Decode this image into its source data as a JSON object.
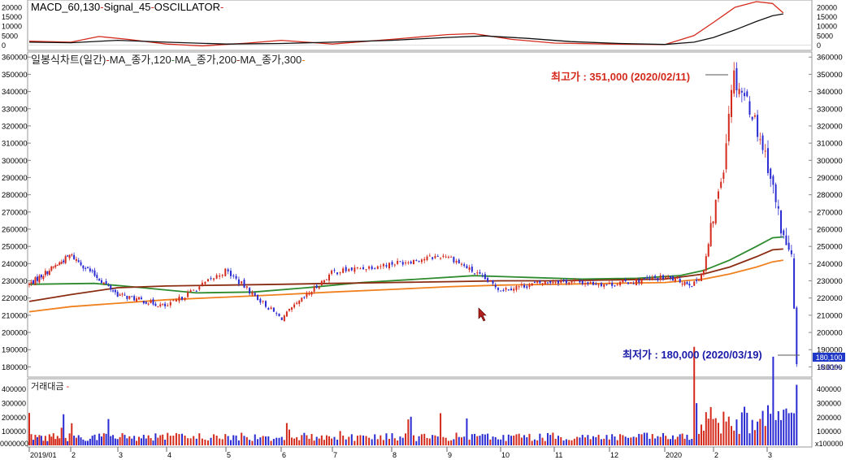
{
  "panels": {
    "macd": {
      "title_parts": [
        "MACD_60,130",
        "Signal_45",
        "OSCILLATOR"
      ],
      "ticks": [
        {
          "v": 20000,
          "label": "20000"
        },
        {
          "v": 15000,
          "label": "15000"
        },
        {
          "v": 10000,
          "label": "10000"
        },
        {
          "v": 5000,
          "label": "5000"
        },
        {
          "v": 0,
          "label": "0"
        }
      ]
    },
    "price": {
      "title_parts": [
        "일봉식차트(일간)",
        "MA_종가,120",
        "MA_종가,200",
        "MA_종가,300"
      ],
      "ticks": [
        "360000",
        "350000",
        "340000",
        "330000",
        "320000",
        "310000",
        "300000",
        "290000",
        "280000",
        "270000",
        "260000",
        "250000",
        "240000",
        "230000",
        "220000",
        "210000",
        "200000",
        "190000",
        "180000"
      ],
      "high_annotation": "최고가 : 351,000 (2020/02/11)",
      "low_annotation": "최저가 : 180,000 (2020/03/19)",
      "last_price_badge": "180,100",
      "change_badge": "-5.61%"
    },
    "volume": {
      "title": "거래대금",
      "ticks": [
        {
          "v": 400000,
          "label": "400000"
        },
        {
          "v": 300000,
          "label": "300000"
        },
        {
          "v": 200000,
          "label": "200000"
        },
        {
          "v": 100000,
          "label": "100000"
        }
      ],
      "left_base_label": "0000000",
      "right_base_label": "x100000"
    }
  },
  "x_axis": {
    "labels": [
      "2019/01",
      "2",
      "3",
      "4",
      "5",
      "6",
      "7",
      "8",
      "9",
      "10",
      "11",
      "12",
      "2020",
      "2",
      "3"
    ]
  },
  "colors": {
    "up": "#d42a1c",
    "down": "#2a2ad2",
    "ma120": "#2e8b2e",
    "ma200": "#8b2d12",
    "ma300": "#f0801e",
    "macd": "#d42a1c",
    "signal": "#111111",
    "annotation_high": "#d42a1c",
    "annotation_low": "#1a1aa8"
  },
  "chart_data": {
    "type": "candlestick",
    "x_months": [
      "2019/01",
      "2",
      "3",
      "4",
      "5",
      "6",
      "7",
      "8",
      "9",
      "10",
      "11",
      "12",
      "2020",
      "2",
      "3"
    ],
    "price_range": [
      175000,
      362000
    ],
    "close_by_month_approx": [
      {
        "month": "2019/01",
        "close": 228000
      },
      {
        "month": "2",
        "close": 245000
      },
      {
        "month": "3",
        "close": 222000
      },
      {
        "month": "4",
        "close": 215000
      },
      {
        "month": "5",
        "close": 236000
      },
      {
        "month": "6",
        "close": 208000
      },
      {
        "month": "7",
        "close": 235000
      },
      {
        "month": "8",
        "close": 240000
      },
      {
        "month": "9",
        "close": 245000
      },
      {
        "month": "10",
        "close": 225000
      },
      {
        "month": "11",
        "close": 230000
      },
      {
        "month": "12",
        "close": 228000
      },
      {
        "month": "2020",
        "close": 232000
      },
      {
        "month": "2",
        "close": 330000
      },
      {
        "month": "3",
        "close": 180100
      }
    ],
    "high": {
      "value": 351000,
      "date": "2020/02/11"
    },
    "low": {
      "value": 180000,
      "date": "2020/03/19"
    },
    "moving_averages": [
      {
        "name": "MA_종가,120",
        "color": "#2e8b2e",
        "points": [
          [
            0,
            228000
          ],
          [
            1.5,
            228500
          ],
          [
            2.5,
            226000
          ],
          [
            3.5,
            223000
          ],
          [
            4.5,
            223500
          ],
          [
            5.5,
            226000
          ],
          [
            6.5,
            229000
          ],
          [
            7.5,
            231000
          ],
          [
            8.5,
            233000
          ],
          [
            9.5,
            232000
          ],
          [
            10.5,
            231000
          ],
          [
            11.5,
            231500
          ],
          [
            12.3,
            233000
          ],
          [
            12.8,
            236000
          ],
          [
            13.3,
            242000
          ],
          [
            13.8,
            250000
          ],
          [
            14.1,
            255000
          ],
          [
            14.3,
            255500
          ]
        ]
      },
      {
        "name": "MA_종가,200",
        "color": "#8b2d12",
        "points": [
          [
            0,
            218000
          ],
          [
            1,
            222000
          ],
          [
            2,
            226000
          ],
          [
            3,
            227000
          ],
          [
            4,
            227500
          ],
          [
            5,
            228000
          ],
          [
            6,
            228500
          ],
          [
            7,
            229000
          ],
          [
            8,
            229500
          ],
          [
            9,
            230000
          ],
          [
            10,
            230000
          ],
          [
            11,
            230500
          ],
          [
            12,
            231000
          ],
          [
            12.8,
            234000
          ],
          [
            13.3,
            238000
          ],
          [
            13.8,
            244000
          ],
          [
            14.1,
            248000
          ],
          [
            14.3,
            248500
          ]
        ]
      },
      {
        "name": "MA_종가,300",
        "color": "#f0801e",
        "points": [
          [
            0,
            212000
          ],
          [
            1,
            215000
          ],
          [
            2,
            217000
          ],
          [
            3,
            219000
          ],
          [
            4,
            220500
          ],
          [
            5,
            222000
          ],
          [
            6,
            223500
          ],
          [
            7,
            225000
          ],
          [
            8,
            226500
          ],
          [
            9,
            227500
          ],
          [
            10,
            228000
          ],
          [
            11,
            228500
          ],
          [
            12,
            229000
          ],
          [
            12.8,
            231000
          ],
          [
            13.3,
            234000
          ],
          [
            13.8,
            238000
          ],
          [
            14.1,
            241000
          ],
          [
            14.3,
            242000
          ]
        ]
      }
    ],
    "macd_range": [
      -2000,
      23000
    ],
    "macd": [
      [
        0,
        2000
      ],
      [
        1,
        1500
      ],
      [
        1.6,
        4500
      ],
      [
        2.2,
        3000
      ],
      [
        3,
        500
      ],
      [
        3.6,
        -500
      ],
      [
        4.4,
        1000
      ],
      [
        5,
        2500
      ],
      [
        6,
        500
      ],
      [
        7,
        3000
      ],
      [
        8,
        5500
      ],
      [
        8.5,
        6000
      ],
      [
        9.2,
        3000
      ],
      [
        10,
        1000
      ],
      [
        11,
        500
      ],
      [
        12,
        200
      ],
      [
        12.6,
        5000
      ],
      [
        13,
        12000
      ],
      [
        13.4,
        20000
      ],
      [
        13.8,
        23000
      ],
      [
        14.1,
        22000
      ],
      [
        14.3,
        17000
      ]
    ],
    "signal": [
      [
        0,
        1500
      ],
      [
        1,
        1200
      ],
      [
        2,
        2500
      ],
      [
        3,
        1500
      ],
      [
        4,
        500
      ],
      [
        5,
        800
      ],
      [
        6,
        1500
      ],
      [
        7,
        2500
      ],
      [
        8,
        4000
      ],
      [
        8.7,
        4800
      ],
      [
        9.5,
        3500
      ],
      [
        10.3,
        1800
      ],
      [
        11.2,
        800
      ],
      [
        12,
        300
      ],
      [
        12.6,
        1500
      ],
      [
        13,
        4000
      ],
      [
        13.4,
        8000
      ],
      [
        13.8,
        12500
      ],
      [
        14.1,
        15500
      ],
      [
        14.3,
        16500
      ]
    ],
    "volume_range": [
      0,
      450000
    ],
    "volume_note": "daily trading value bars (거래대금), peak about 430000 in 2020/03"
  }
}
